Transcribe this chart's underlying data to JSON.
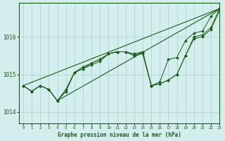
{
  "title": "Graphe pression niveau de la mer (hPa)",
  "background_color": "#d4eeed",
  "grid_color": "#aacfcc",
  "line_color": "#1a5c1a",
  "xlim": [
    -0.5,
    23
  ],
  "ylim": [
    1013.7,
    1016.9
  ],
  "xticks": [
    0,
    1,
    2,
    3,
    4,
    5,
    6,
    7,
    8,
    9,
    10,
    11,
    12,
    13,
    14,
    15,
    16,
    17,
    18,
    19,
    20,
    21,
    22,
    23
  ],
  "yticks": [
    1014,
    1015,
    1016
  ],
  "series_marker": [
    1014.7,
    1014.55,
    1014.7,
    1014.6,
    1014.3,
    1014.55,
    1015.05,
    1015.15,
    1015.3,
    1015.4,
    1015.55,
    1015.6,
    1015.6,
    1015.5,
    1015.6,
    1014.7,
    1014.75,
    1014.85,
    1015.0,
    1015.5,
    1016.0,
    1016.05,
    1016.25,
    1016.75
  ],
  "series_line1": [
    1014.7,
    1014.55,
    1014.7,
    1014.6,
    1014.3,
    1014.6,
    1015.05,
    1015.2,
    1015.3,
    1015.4,
    1015.55,
    1015.6,
    1015.6,
    1015.55,
    1015.6,
    1014.7,
    1014.8,
    1015.4,
    1015.45,
    1015.9,
    1016.1,
    1016.15,
    1016.55,
    1016.75
  ],
  "series_line2": [
    1014.7,
    1014.55,
    1014.7,
    1014.6,
    1014.3,
    1014.55,
    1015.05,
    1015.15,
    1015.25,
    1015.35,
    1015.55,
    1015.6,
    1015.6,
    1015.5,
    1015.55,
    1014.7,
    1014.75,
    1014.85,
    1015.0,
    1015.5,
    1015.95,
    1016.0,
    1016.2,
    1016.7
  ],
  "trend_line": [
    1014.7,
    1016.75
  ],
  "trend_line_x": [
    0,
    23
  ],
  "steep_line": [
    1014.3,
    1016.75
  ],
  "steep_line_x": [
    4,
    23
  ]
}
